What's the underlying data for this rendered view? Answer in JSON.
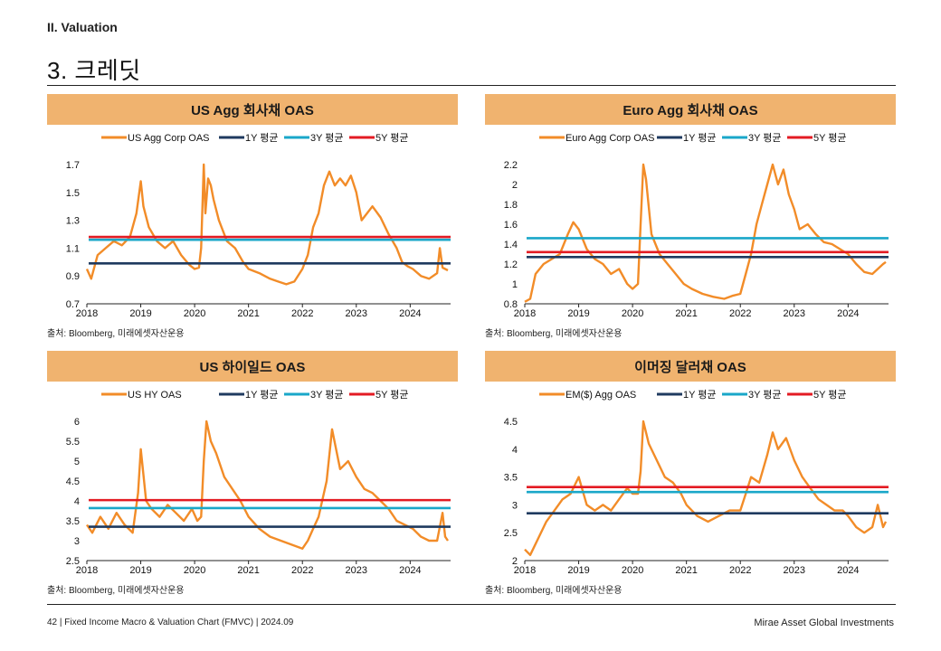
{
  "header": {
    "section": "II. Valuation",
    "title": "3. 크레딧"
  },
  "footer": {
    "left": "42 | Fixed Income Macro & Valuation Chart (FMVC) | 2024.09",
    "right": "Mirae Asset Global Investments"
  },
  "colors": {
    "header_bg": "#f0b36f",
    "oas": "#f28c28",
    "avg_1y": "#1f3a5f",
    "avg_3y": "#1aa7c9",
    "avg_5y": "#e31b23"
  },
  "chart_data": [
    {
      "type": "line",
      "title": "US Agg 회사채 OAS",
      "source": "출처: Bloomberg, 미래에셋자산운용",
      "xlabel": "",
      "ylabel": "",
      "xlim": [
        2018,
        2024.75
      ],
      "xticks": [
        "2018",
        "2019",
        "2020",
        "2021",
        "2022",
        "2023",
        "2024"
      ],
      "ylim": [
        0.7,
        1.7
      ],
      "yticks": [
        "0.7",
        "0.9",
        "1.1",
        "1.3",
        "1.5",
        "1.7"
      ],
      "legend": [
        "US Agg Corp OAS",
        "1Y 평균",
        "3Y 평균",
        "5Y 평균"
      ],
      "legend_position": "top",
      "series": [
        {
          "name": "US Agg Corp OAS",
          "style": "line",
          "x": [
            2018.0,
            2018.08,
            2018.2,
            2018.35,
            2018.5,
            2018.65,
            2018.8,
            2018.92,
            2019.0,
            2019.05,
            2019.15,
            2019.3,
            2019.45,
            2019.6,
            2019.75,
            2019.9,
            2020.0,
            2020.08,
            2020.12,
            2020.17,
            2020.2,
            2020.25,
            2020.3,
            2020.35,
            2020.45,
            2020.6,
            2020.75,
            2020.9,
            2021.0,
            2021.2,
            2021.4,
            2021.55,
            2021.7,
            2021.85,
            2022.0,
            2022.1,
            2022.2,
            2022.3,
            2022.4,
            2022.5,
            2022.6,
            2022.7,
            2022.8,
            2022.9,
            2023.0,
            2023.1,
            2023.2,
            2023.3,
            2023.45,
            2023.6,
            2023.75,
            2023.85,
            2023.95,
            2024.05,
            2024.2,
            2024.35,
            2024.5,
            2024.55,
            2024.6,
            2024.7
          ],
          "y": [
            0.95,
            0.88,
            1.05,
            1.1,
            1.15,
            1.12,
            1.18,
            1.35,
            1.58,
            1.4,
            1.25,
            1.15,
            1.1,
            1.15,
            1.05,
            0.98,
            0.95,
            0.96,
            1.1,
            1.7,
            1.35,
            1.6,
            1.55,
            1.45,
            1.3,
            1.15,
            1.1,
            1.0,
            0.95,
            0.92,
            0.88,
            0.86,
            0.84,
            0.86,
            0.95,
            1.05,
            1.25,
            1.35,
            1.55,
            1.65,
            1.55,
            1.6,
            1.55,
            1.62,
            1.5,
            1.3,
            1.35,
            1.4,
            1.32,
            1.2,
            1.1,
            1.0,
            0.97,
            0.95,
            0.9,
            0.88,
            0.92,
            1.1,
            0.96,
            0.94
          ]
        },
        {
          "name": "1Y 평균",
          "style": "hline",
          "y": 0.99
        },
        {
          "name": "3Y 평균",
          "style": "hline",
          "y": 1.16
        },
        {
          "name": "5Y 평균",
          "style": "hline",
          "y": 1.18
        }
      ]
    },
    {
      "type": "line",
      "title": "Euro Agg 회사채 OAS",
      "source": "출처: Bloomberg, 미래에셋자산운용",
      "xlabel": "",
      "ylabel": "",
      "xlim": [
        2018,
        2024.75
      ],
      "xticks": [
        "2018",
        "2019",
        "2020",
        "2021",
        "2022",
        "2023",
        "2024"
      ],
      "ylim": [
        0.8,
        2.2
      ],
      "yticks": [
        "0.8",
        "1",
        "1.2",
        "1.4",
        "1.6",
        "1.8",
        "2",
        "2.2"
      ],
      "legend": [
        "Euro Agg Corp OAS",
        "1Y 평균",
        "3Y 평균",
        "5Y 평균"
      ],
      "legend_position": "top",
      "series": [
        {
          "name": "Euro Agg Corp OAS",
          "style": "line",
          "x": [
            2018.0,
            2018.1,
            2018.2,
            2018.35,
            2018.5,
            2018.65,
            2018.8,
            2018.9,
            2019.0,
            2019.15,
            2019.3,
            2019.45,
            2019.6,
            2019.75,
            2019.9,
            2020.0,
            2020.1,
            2020.15,
            2020.2,
            2020.25,
            2020.35,
            2020.5,
            2020.65,
            2020.8,
            2020.95,
            2021.1,
            2021.3,
            2021.5,
            2021.7,
            2021.85,
            2022.0,
            2022.1,
            2022.2,
            2022.3,
            2022.4,
            2022.5,
            2022.6,
            2022.7,
            2022.8,
            2022.9,
            2023.0,
            2023.1,
            2023.25,
            2023.4,
            2023.55,
            2023.7,
            2023.85,
            2024.0,
            2024.15,
            2024.3,
            2024.45,
            2024.55,
            2024.65,
            2024.7
          ],
          "y": [
            0.82,
            0.85,
            1.1,
            1.2,
            1.25,
            1.3,
            1.5,
            1.62,
            1.55,
            1.35,
            1.25,
            1.2,
            1.1,
            1.15,
            1.0,
            0.95,
            1.0,
            1.6,
            2.2,
            2.05,
            1.5,
            1.3,
            1.2,
            1.1,
            1.0,
            0.95,
            0.9,
            0.87,
            0.85,
            0.88,
            0.9,
            1.1,
            1.3,
            1.6,
            1.8,
            2.0,
            2.2,
            2.0,
            2.15,
            1.9,
            1.75,
            1.55,
            1.6,
            1.5,
            1.42,
            1.4,
            1.35,
            1.3,
            1.2,
            1.12,
            1.1,
            1.15,
            1.2,
            1.22
          ]
        },
        {
          "name": "1Y 평균",
          "style": "hline",
          "y": 1.27
        },
        {
          "name": "3Y 평균",
          "style": "hline",
          "y": 1.46
        },
        {
          "name": "5Y 평균",
          "style": "hline",
          "y": 1.32
        }
      ]
    },
    {
      "type": "line",
      "title": "US 하이일드 OAS",
      "source": "출처: Bloomberg, 미래에셋자산운용",
      "xlabel": "",
      "ylabel": "",
      "xlim": [
        2018,
        2024.75
      ],
      "xticks": [
        "2018",
        "2019",
        "2020",
        "2021",
        "2022",
        "2023",
        "2024"
      ],
      "ylim": [
        2.5,
        6
      ],
      "yticks": [
        "2.5",
        "3",
        "3.5",
        "4",
        "4.5",
        "5",
        "5.5",
        "6"
      ],
      "legend": [
        "US HY OAS",
        "1Y 평균",
        "3Y 평균",
        "5Y 평균"
      ],
      "legend_position": "top",
      "series": [
        {
          "name": "US HY OAS",
          "style": "line",
          "x": [
            2018.0,
            2018.1,
            2018.25,
            2018.4,
            2018.55,
            2018.7,
            2018.85,
            2018.95,
            2019.0,
            2019.1,
            2019.2,
            2019.35,
            2019.5,
            2019.65,
            2019.8,
            2019.95,
            2020.05,
            2020.12,
            2020.17,
            2020.22,
            2020.3,
            2020.4,
            2020.55,
            2020.7,
            2020.85,
            2021.0,
            2021.2,
            2021.4,
            2021.6,
            2021.8,
            2022.0,
            2022.1,
            2022.2,
            2022.3,
            2022.45,
            2022.55,
            2022.7,
            2022.85,
            2023.0,
            2023.15,
            2023.3,
            2023.45,
            2023.6,
            2023.75,
            2023.9,
            2024.05,
            2024.2,
            2024.35,
            2024.5,
            2024.6,
            2024.65,
            2024.7
          ],
          "y": [
            3.4,
            3.2,
            3.6,
            3.3,
            3.7,
            3.4,
            3.2,
            4.2,
            5.3,
            4.0,
            3.8,
            3.6,
            3.9,
            3.7,
            3.5,
            3.8,
            3.5,
            3.6,
            5.0,
            6.0,
            5.5,
            5.2,
            4.6,
            4.3,
            4.0,
            3.6,
            3.3,
            3.1,
            3.0,
            2.9,
            2.8,
            3.0,
            3.3,
            3.6,
            4.5,
            5.8,
            4.8,
            5.0,
            4.6,
            4.3,
            4.2,
            4.0,
            3.8,
            3.5,
            3.4,
            3.3,
            3.1,
            3.0,
            3.0,
            3.7,
            3.1,
            3.0
          ]
        },
        {
          "name": "1Y 평균",
          "style": "hline",
          "y": 3.35
        },
        {
          "name": "3Y 평균",
          "style": "hline",
          "y": 3.82
        },
        {
          "name": "5Y 평균",
          "style": "hline",
          "y": 4.02
        }
      ]
    },
    {
      "type": "line",
      "title": "이머징 달러채 OAS",
      "source": "출처: Bloomberg, 미래에셋자산운용",
      "xlabel": "",
      "ylabel": "",
      "xlim": [
        2018,
        2024.75
      ],
      "xticks": [
        "2018",
        "2019",
        "2020",
        "2021",
        "2022",
        "2023",
        "2024"
      ],
      "ylim": [
        2,
        4.5
      ],
      "yticks": [
        "2",
        "2.5",
        "3",
        "3.5",
        "4",
        "4.5"
      ],
      "legend": [
        "EM($) Agg OAS",
        "1Y 평균",
        "3Y 평균",
        "5Y 평균"
      ],
      "legend_position": "top",
      "series": [
        {
          "name": "EM($) Agg OAS",
          "style": "line",
          "x": [
            2018.0,
            2018.1,
            2018.25,
            2018.4,
            2018.55,
            2018.7,
            2018.85,
            2019.0,
            2019.15,
            2019.3,
            2019.45,
            2019.6,
            2019.75,
            2019.9,
            2020.0,
            2020.1,
            2020.15,
            2020.2,
            2020.3,
            2020.45,
            2020.6,
            2020.75,
            2020.9,
            2021.0,
            2021.2,
            2021.4,
            2021.6,
            2021.8,
            2022.0,
            2022.1,
            2022.2,
            2022.35,
            2022.5,
            2022.6,
            2022.7,
            2022.85,
            2023.0,
            2023.15,
            2023.3,
            2023.45,
            2023.6,
            2023.75,
            2023.9,
            2024.0,
            2024.15,
            2024.3,
            2024.45,
            2024.55,
            2024.65,
            2024.7
          ],
          "y": [
            2.2,
            2.1,
            2.4,
            2.7,
            2.9,
            3.1,
            3.2,
            3.5,
            3.0,
            2.9,
            3.0,
            2.9,
            3.1,
            3.3,
            3.2,
            3.2,
            3.6,
            4.5,
            4.1,
            3.8,
            3.5,
            3.4,
            3.2,
            3.0,
            2.8,
            2.7,
            2.8,
            2.9,
            2.9,
            3.2,
            3.5,
            3.4,
            3.9,
            4.3,
            4.0,
            4.2,
            3.8,
            3.5,
            3.3,
            3.1,
            3.0,
            2.9,
            2.9,
            2.8,
            2.6,
            2.5,
            2.6,
            3.0,
            2.6,
            2.7
          ]
        },
        {
          "name": "1Y 평균",
          "style": "hline",
          "y": 2.85
        },
        {
          "name": "3Y 평균",
          "style": "hline",
          "y": 3.23
        },
        {
          "name": "5Y 평균",
          "style": "hline",
          "y": 3.32
        }
      ]
    }
  ]
}
